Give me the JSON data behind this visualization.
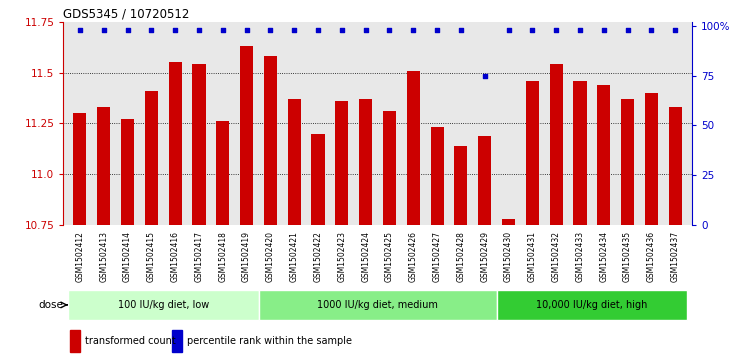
{
  "title": "GDS5345 / 10720512",
  "samples": [
    "GSM1502412",
    "GSM1502413",
    "GSM1502414",
    "GSM1502415",
    "GSM1502416",
    "GSM1502417",
    "GSM1502418",
    "GSM1502419",
    "GSM1502420",
    "GSM1502421",
    "GSM1502422",
    "GSM1502423",
    "GSM1502424",
    "GSM1502425",
    "GSM1502426",
    "GSM1502427",
    "GSM1502428",
    "GSM1502429",
    "GSM1502430",
    "GSM1502431",
    "GSM1502432",
    "GSM1502433",
    "GSM1502434",
    "GSM1502435",
    "GSM1502436",
    "GSM1502437"
  ],
  "bar_values": [
    11.3,
    11.33,
    11.27,
    11.41,
    11.55,
    11.54,
    11.26,
    11.63,
    11.58,
    11.37,
    11.2,
    11.36,
    11.37,
    11.31,
    11.51,
    11.23,
    11.14,
    11.19,
    10.78,
    11.46,
    11.54,
    11.46,
    11.44,
    11.37,
    11.4,
    11.33
  ],
  "dot_y_data": [
    98,
    98,
    98,
    98,
    98,
    98,
    98,
    98,
    98,
    98,
    98,
    98,
    98,
    98,
    98,
    98,
    98,
    75,
    98,
    98,
    98,
    98,
    98,
    98,
    98,
    98
  ],
  "groups": [
    {
      "label": "100 IU/kg diet, low",
      "start": 0,
      "end": 8,
      "color": "#ccffcc"
    },
    {
      "label": "1000 IU/kg diet, medium",
      "start": 8,
      "end": 18,
      "color": "#88ee88"
    },
    {
      "label": "10,000 IU/kg diet, high",
      "start": 18,
      "end": 26,
      "color": "#33cc33"
    }
  ],
  "ylim": [
    10.75,
    11.75
  ],
  "yticks": [
    10.75,
    11.0,
    11.25,
    11.5,
    11.75
  ],
  "bar_color": "#cc0000",
  "dot_color": "#0000cc",
  "background_color": "#ffffff",
  "right_yticks": [
    0,
    25,
    50,
    75,
    100
  ],
  "right_ylabels": [
    "0",
    "25",
    "50",
    "75",
    "100%"
  ],
  "right_ylim": [
    0,
    100
  ],
  "grid_yticks": [
    11.0,
    11.25,
    11.5
  ],
  "legend_items": [
    {
      "color": "#cc0000",
      "label": "transformed count"
    },
    {
      "color": "#0000cc",
      "label": "percentile rank within the sample"
    }
  ],
  "dose_label": "dose",
  "plot_bg": "#e8e8e8"
}
